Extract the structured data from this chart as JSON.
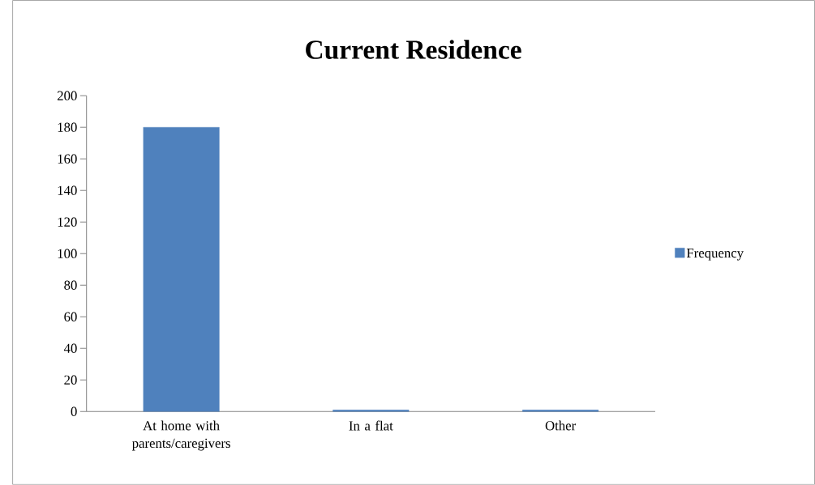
{
  "chart_data": {
    "type": "bar",
    "title": "Current Residence",
    "categories": [
      "At home with parents/caregivers",
      "In a flat",
      "Other"
    ],
    "series": [
      {
        "name": "Frequency",
        "color": "#4f81bd",
        "values": [
          180,
          1,
          1
        ]
      }
    ],
    "ylim": [
      0,
      200
    ],
    "yticks": [
      0,
      20,
      40,
      60,
      80,
      100,
      120,
      140,
      160,
      180,
      200
    ],
    "legend": "right",
    "grid": false
  }
}
